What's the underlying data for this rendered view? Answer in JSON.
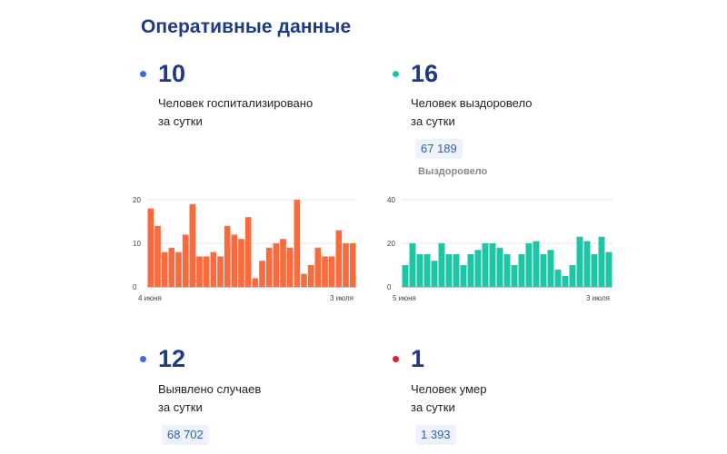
{
  "page": {
    "title": "Оперативные данные"
  },
  "colors": {
    "hospital": "#3b6fd8",
    "recovered": "#1fc6a6",
    "cases": "#3b6fd8",
    "deaths": "#d7262b"
  },
  "stats": {
    "hospitalized": {
      "value": "10",
      "line1": "Человек госпитализировано",
      "line2": "за сутки"
    },
    "recovered": {
      "value": "16",
      "line1": "Человек выздоровело",
      "line2": "за сутки",
      "total": "67 189",
      "total_label": "Выздоровело"
    },
    "cases": {
      "value": "12",
      "line1": "Выявлено случаев",
      "line2": "за сутки",
      "total": "68 702"
    },
    "deaths": {
      "value": "1",
      "line1": "Человек умер",
      "line2": "за сутки",
      "total": "1 393"
    }
  },
  "chart_data": [
    {
      "type": "bar",
      "color": "#fb6a3d",
      "ylim": [
        0,
        20
      ],
      "y_ticks": [
        "0",
        "10",
        "20"
      ],
      "x_start_label": "4 июня",
      "x_end_label": "3 июля",
      "values": [
        18,
        14,
        8,
        9,
        8,
        12,
        19,
        7,
        7,
        8,
        7,
        14,
        12,
        11,
        16,
        2,
        6,
        9,
        10,
        11,
        9,
        20,
        3,
        5,
        9,
        7,
        7,
        13,
        10,
        10
      ]
    },
    {
      "type": "bar",
      "color": "#1fc6a6",
      "ylim": [
        0,
        40
      ],
      "y_ticks": [
        "0",
        "20",
        "40"
      ],
      "x_start_label": "5 июня",
      "x_end_label": "3 июля",
      "values": [
        10,
        20,
        15,
        15,
        12,
        20,
        15,
        15,
        10,
        15,
        17,
        20,
        20,
        18,
        15,
        10,
        15,
        20,
        21,
        15,
        17,
        8,
        5,
        10,
        23,
        21,
        15,
        23,
        16
      ]
    }
  ]
}
